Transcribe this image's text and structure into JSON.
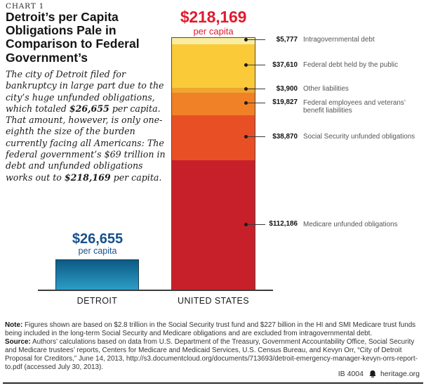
{
  "meta": {
    "kicker": "CHART 1",
    "footer_id": "IB 4004",
    "footer_site": "heritage.org"
  },
  "title": "Detroit’s per Capita Obligations Pale in Comparison to Federal Government’s",
  "intro": {
    "seg1": "The city of Detroit filed for bankruptcy in large part due to the city’s huge unfunded obligations, which totaled ",
    "bold1": "$26,655",
    "seg2": " per capita. That amount, however, is only one-eighth the size of the burden currently facing all Americans: The federal government’s $69 trillion in debt and unfunded obligations works out to ",
    "bold2": "$218,169",
    "seg3": " per capita."
  },
  "colors": {
    "accent_red": "#e11b2e",
    "accent_blue": "#17518c",
    "detroit_bar_top": "#0c5a84",
    "detroit_bar_bottom": "#2b9dc6"
  },
  "chart_data": {
    "type": "bar",
    "title": "Detroit’s per Capita Obligations Pale in Comparison to Federal Government’s",
    "unit": "USD per capita",
    "categories": [
      "DETROIT",
      "UNITED STATES"
    ],
    "layout": {
      "grid": false,
      "y_axis_hidden": true,
      "stacked_bar": "UNITED STATES",
      "callouts": "right of US bar"
    },
    "detroit": {
      "total_value": 26655,
      "total_label": "$26,655",
      "sublabel": "per capita"
    },
    "us": {
      "total_value": 218169,
      "total_label": "$218,169",
      "sublabel": "per capita",
      "segments_top_to_bottom": [
        {
          "name": "Intragovernmental debt",
          "value": 5777,
          "value_label": "$5,777",
          "color": "#f9eda1"
        },
        {
          "name": "Federal debt held by the public",
          "value": 37610,
          "value_label": "$37,610",
          "color": "#fbca39"
        },
        {
          "name": "Other liabilities",
          "value": 3900,
          "value_label": "$3,900",
          "color": "#efa72f"
        },
        {
          "name": "Federal employees and veterans’ benefit liabilities",
          "value": 19827,
          "value_label": "$19,827",
          "color": "#f08127"
        },
        {
          "name": "Social Security unfunded obligations",
          "value": 38870,
          "value_label": "$38,870",
          "color": "#e94f25"
        },
        {
          "name": "Medicare unfunded obligations",
          "value": 112186,
          "value_label": "$112,186",
          "color": "#c8202b"
        }
      ]
    }
  },
  "footer": {
    "note_label": "Note:",
    "note_text": " Figures shown are based on $2.8 trillion in the Social Security trust fund and $227 billion in the HI and SMI Medicare trust funds being included in the long-term Social Security and Medicare obligations and are excluded from intragovernmental debt.",
    "source_label": "Source:",
    "source_text": " Authors’ calculations based on data from U.S. Department of the Treasury, Government Accountability Office, Social Security and Medicare trustees’ reports, Centers for Medicare and Medicaid Services, U.S. Census Bureau, and Kevyn Orr, “City of Detroit Proposal for Creditors,” June 14, 2013, http://s3.documentcloud.org/documents/713693/detroit-emergency-manager-kevyn-orrs-report-to.pdf (accessed July 30, 2013)."
  }
}
